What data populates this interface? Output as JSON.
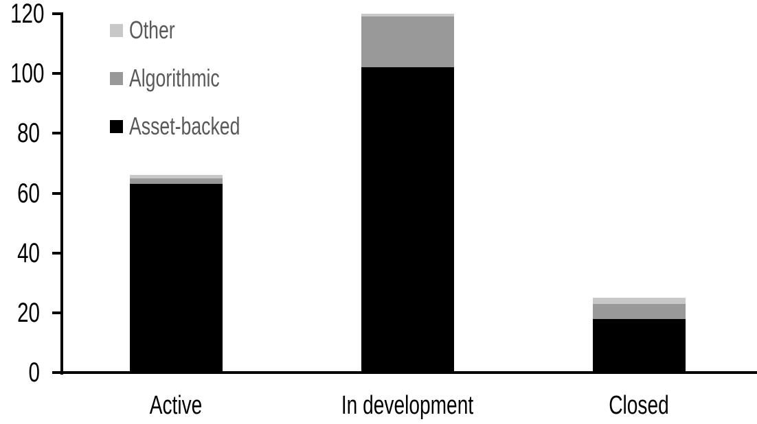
{
  "chart_data": {
    "type": "bar",
    "stacked": true,
    "title": "",
    "xlabel": "",
    "ylabel": "",
    "categories": [
      "Active",
      "In development",
      "Closed"
    ],
    "series": [
      {
        "name": "Asset-backed",
        "color": "#000000",
        "values": [
          63,
          102,
          18
        ]
      },
      {
        "name": "Algorithmic",
        "color": "#999999",
        "values": [
          2,
          17,
          5
        ]
      },
      {
        "name": "Other",
        "color": "#c8c8c8",
        "values": [
          1,
          1,
          2
        ]
      }
    ],
    "totals": [
      66,
      120,
      25
    ],
    "ylim": [
      0,
      120
    ],
    "yticks": [
      0,
      20,
      40,
      60,
      80,
      100,
      120
    ],
    "grid": false,
    "legend_position": "top-left",
    "legend_items": [
      {
        "label": "Other",
        "color": "#c8c8c8"
      },
      {
        "label": "Algorithmic",
        "color": "#999999"
      },
      {
        "label": "Asset-backed",
        "color": "#000000"
      }
    ]
  },
  "colors": {
    "background": "#ffffff",
    "axis": "#000000",
    "axis_text": "#000000",
    "legend_text": "#595959"
  }
}
